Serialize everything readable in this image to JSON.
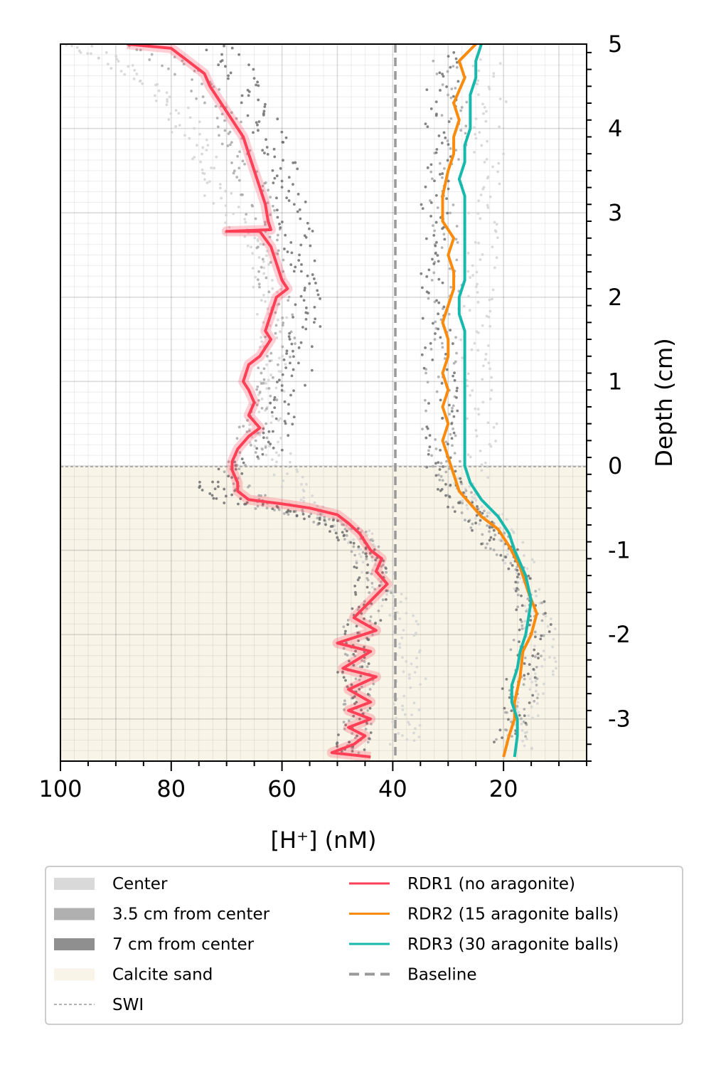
{
  "chart_data": {
    "type": "line",
    "xlabel": "[H⁺] (nM)",
    "ylabel": "Depth (cm)",
    "xlim": [
      100,
      5
    ],
    "ylim": [
      -3.5,
      5
    ],
    "x_ticks": [
      100,
      80,
      60,
      40,
      20
    ],
    "x_tick_labels": [
      "100",
      "80",
      "60",
      "40",
      "20"
    ],
    "y_ticks": [
      5,
      4,
      3,
      2,
      1,
      0,
      -1,
      -2,
      -3
    ],
    "y_tick_labels": [
      "5",
      "4",
      "3",
      "2",
      "1",
      "0",
      "-1",
      "-2",
      "-3"
    ],
    "grid": true,
    "swi_depth": 0,
    "baseline_x": 40,
    "sand_region": {
      "from_depth": -3.5,
      "to_depth": 0,
      "color": "#f8f4e8"
    },
    "series": [
      {
        "name": "RDR1 (no aragonite)",
        "color": "#ff3f56",
        "points": [
          [
            88,
            5
          ],
          [
            80,
            4.95
          ],
          [
            77,
            4.8
          ],
          [
            74,
            4.65
          ],
          [
            73,
            4.5
          ],
          [
            71,
            4.3
          ],
          [
            69,
            4.1
          ],
          [
            67,
            3.9
          ],
          [
            66,
            3.7
          ],
          [
            65,
            3.5
          ],
          [
            64,
            3.3
          ],
          [
            63,
            3.1
          ],
          [
            62.5,
            2.9
          ],
          [
            62,
            2.8
          ],
          [
            70,
            2.78
          ],
          [
            64,
            2.78
          ],
          [
            62,
            2.6
          ],
          [
            61,
            2.4
          ],
          [
            60,
            2.2
          ],
          [
            59,
            2.1
          ],
          [
            61,
            2.0
          ],
          [
            62,
            1.8
          ],
          [
            63,
            1.6
          ],
          [
            62,
            1.5
          ],
          [
            63,
            1.4
          ],
          [
            64,
            1.3
          ],
          [
            66,
            1.2
          ],
          [
            67,
            1.0
          ],
          [
            66,
            0.9
          ],
          [
            65,
            0.75
          ],
          [
            66,
            0.6
          ],
          [
            64,
            0.45
          ],
          [
            66,
            0.35
          ],
          [
            68,
            0.2
          ],
          [
            69,
            0.05
          ],
          [
            69,
            -0.05
          ],
          [
            68,
            -0.2
          ],
          [
            68,
            -0.3
          ],
          [
            66,
            -0.4
          ],
          [
            60,
            -0.45
          ],
          [
            55,
            -0.5
          ],
          [
            50,
            -0.58
          ],
          [
            48,
            -0.68
          ],
          [
            46,
            -0.8
          ],
          [
            44,
            -1.0
          ],
          [
            42,
            -1.1
          ],
          [
            43,
            -1.25
          ],
          [
            41,
            -1.4
          ],
          [
            44,
            -1.6
          ],
          [
            47,
            -1.8
          ],
          [
            43,
            -1.95
          ],
          [
            50,
            -2.1
          ],
          [
            44,
            -2.2
          ],
          [
            49,
            -2.4
          ],
          [
            43,
            -2.5
          ],
          [
            48,
            -2.65
          ],
          [
            44,
            -2.8
          ],
          [
            48,
            -2.9
          ],
          [
            44,
            -3.0
          ],
          [
            48,
            -3.1
          ],
          [
            45,
            -3.2
          ],
          [
            47,
            -3.3
          ],
          [
            51,
            -3.4
          ],
          [
            44,
            -3.45
          ]
        ]
      },
      {
        "name": "RDR2 (15 aragonite balls)",
        "color": "#fb8b0d",
        "points": [
          [
            25,
            5
          ],
          [
            28,
            4.8
          ],
          [
            27,
            4.6
          ],
          [
            29,
            4.3
          ],
          [
            28,
            4.1
          ],
          [
            29,
            3.9
          ],
          [
            29,
            3.7
          ],
          [
            30,
            3.5
          ],
          [
            31,
            3.2
          ],
          [
            31,
            2.9
          ],
          [
            29,
            2.7
          ],
          [
            30,
            2.5
          ],
          [
            29,
            2.3
          ],
          [
            29,
            2.1
          ],
          [
            30,
            1.9
          ],
          [
            31,
            1.7
          ],
          [
            30,
            1.5
          ],
          [
            30,
            1.3
          ],
          [
            31,
            1.1
          ],
          [
            30,
            0.9
          ],
          [
            31,
            0.7
          ],
          [
            30,
            0.5
          ],
          [
            31,
            0.3
          ],
          [
            30,
            0.1
          ],
          [
            29,
            -0.1
          ],
          [
            28,
            -0.3
          ],
          [
            26,
            -0.45
          ],
          [
            24,
            -0.6
          ],
          [
            21,
            -0.75
          ],
          [
            19,
            -0.95
          ],
          [
            17,
            -1.2
          ],
          [
            15.5,
            -1.5
          ],
          [
            14,
            -1.75
          ],
          [
            15,
            -2.0
          ],
          [
            16.5,
            -2.2
          ],
          [
            17,
            -2.5
          ],
          [
            18,
            -2.8
          ],
          [
            18,
            -3.0
          ],
          [
            19,
            -3.2
          ],
          [
            20,
            -3.45
          ]
        ]
      },
      {
        "name": "RDR3 (30 aragonite balls)",
        "color": "#18b9ad",
        "points": [
          [
            24,
            5
          ],
          [
            25,
            4.8
          ],
          [
            25,
            4.6
          ],
          [
            26,
            4.4
          ],
          [
            26,
            4.2
          ],
          [
            26,
            4.0
          ],
          [
            27,
            3.8
          ],
          [
            27,
            3.6
          ],
          [
            28,
            3.4
          ],
          [
            27,
            3.2
          ],
          [
            27,
            3.0
          ],
          [
            27,
            2.8
          ],
          [
            27,
            2.6
          ],
          [
            27,
            2.4
          ],
          [
            27,
            2.2
          ],
          [
            28,
            2.0
          ],
          [
            28,
            1.8
          ],
          [
            27,
            1.6
          ],
          [
            27,
            1.4
          ],
          [
            27,
            1.2
          ],
          [
            27,
            1.0
          ],
          [
            27,
            0.8
          ],
          [
            27,
            0.6
          ],
          [
            27,
            0.4
          ],
          [
            27,
            0.2
          ],
          [
            27,
            0.0
          ],
          [
            26,
            -0.2
          ],
          [
            24,
            -0.4
          ],
          [
            21,
            -0.6
          ],
          [
            19,
            -0.8
          ],
          [
            18,
            -1.0
          ],
          [
            16,
            -1.3
          ],
          [
            15,
            -1.6
          ],
          [
            15.5,
            -1.8
          ],
          [
            16,
            -2.0
          ],
          [
            17,
            -2.2
          ],
          [
            17.5,
            -2.4
          ],
          [
            18.5,
            -2.6
          ],
          [
            18.5,
            -2.8
          ],
          [
            17.5,
            -3.0
          ],
          [
            17.5,
            -3.2
          ],
          [
            18,
            -3.45
          ]
        ]
      },
      {
        "name": "Baseline",
        "color": "#999999",
        "points": [
          [
            40,
            5
          ],
          [
            40,
            -3.5
          ]
        ]
      }
    ],
    "legend": {
      "position": "bottom",
      "entries": [
        {
          "label": "Center",
          "kind": "patch",
          "color": "#d9d9d9"
        },
        {
          "label": "3.5 cm from center",
          "kind": "patch",
          "color": "#b0b0b0"
        },
        {
          "label": "7 cm from center",
          "kind": "patch",
          "color": "#8f8f8f"
        },
        {
          "label": "Calcite sand",
          "kind": "patch",
          "color": "#f8f4e8"
        },
        {
          "label": "SWI",
          "kind": "dotted",
          "color": "#999999"
        },
        {
          "label": "RDR1 (no aragonite)",
          "kind": "line",
          "color": "#ff3f56"
        },
        {
          "label": "RDR2 (15 aragonite balls)",
          "kind": "line",
          "color": "#fb8b0d"
        },
        {
          "label": "RDR3 (30 aragonite balls)",
          "kind": "line",
          "color": "#18b9ad"
        },
        {
          "label": "Baseline",
          "kind": "dashed",
          "color": "#999999"
        }
      ]
    },
    "scatter_profiles": [
      {
        "name": "Center",
        "color": "#d4d4d4",
        "profiles": [
          [
            [
              98,
              5
            ],
            [
              90,
              4.8
            ],
            [
              83,
              4.5
            ],
            [
              78,
              4.1
            ],
            [
              75,
              3.7
            ],
            [
              72,
              3.3
            ],
            [
              68,
              2.8
            ],
            [
              63,
              2.5
            ],
            [
              62,
              2.0
            ],
            [
              62,
              1.5
            ],
            [
              62,
              1.0
            ],
            [
              63,
              0.6
            ],
            [
              63,
              0.3
            ],
            [
              60,
              0.0
            ],
            [
              57,
              -0.4
            ],
            [
              52,
              -0.6
            ],
            [
              46,
              -0.8
            ],
            [
              44,
              -1.1
            ],
            [
              41,
              -1.5
            ],
            [
              38,
              -1.8
            ],
            [
              37,
              -2.2
            ],
            [
              37,
              -2.6
            ],
            [
              37,
              -3.0
            ],
            [
              38,
              -3.3
            ]
          ],
          [
            [
              23,
              4.8
            ],
            [
              22,
              4.3
            ],
            [
              23,
              3.7
            ],
            [
              24,
              3.1
            ],
            [
              24,
              2.5
            ],
            [
              25,
              2.0
            ],
            [
              25,
              1.5
            ],
            [
              24,
              1.0
            ],
            [
              24,
              0.4
            ],
            [
              26,
              -0.2
            ],
            [
              24,
              -0.5
            ],
            [
              20,
              -0.8
            ],
            [
              17,
              -1.2
            ],
            [
              14,
              -1.7
            ],
            [
              13,
              -2.2
            ],
            [
              14,
              -2.6
            ],
            [
              16,
              -3.0
            ],
            [
              17,
              -3.4
            ]
          ]
        ]
      },
      {
        "name": "3.5 cm from center",
        "color": "#a8a8a8",
        "profiles": [
          [
            [
              85,
              5
            ],
            [
              76,
              4.6
            ],
            [
              71,
              4.2
            ],
            [
              68,
              3.8
            ],
            [
              66,
              3.4
            ],
            [
              64,
              3.0
            ],
            [
              62,
              2.5
            ],
            [
              61,
              2.0
            ],
            [
              60,
              1.5
            ],
            [
              62,
              1.0
            ],
            [
              64,
              0.6
            ],
            [
              66,
              0.2
            ],
            [
              68,
              -0.2
            ],
            [
              64,
              -0.45
            ],
            [
              54,
              -0.6
            ],
            [
              47,
              -0.8
            ],
            [
              44,
              -1.1
            ],
            [
              42,
              -1.5
            ],
            [
              46,
              -1.9
            ],
            [
              47,
              -2.3
            ],
            [
              46,
              -2.7
            ],
            [
              46,
              -3.1
            ],
            [
              47,
              -3.4
            ]
          ],
          [
            [
              30,
              4.8
            ],
            [
              29,
              4.2
            ],
            [
              30,
              3.6
            ],
            [
              31,
              3.0
            ],
            [
              30,
              2.4
            ],
            [
              31,
              1.8
            ],
            [
              31,
              1.2
            ],
            [
              32,
              0.6
            ],
            [
              31,
              0.1
            ],
            [
              29,
              -0.3
            ],
            [
              25,
              -0.6
            ],
            [
              21,
              -0.9
            ],
            [
              18,
              -1.3
            ],
            [
              15,
              -1.8
            ],
            [
              16,
              -2.3
            ],
            [
              17,
              -2.8
            ],
            [
              19,
              -3.3
            ]
          ]
        ]
      },
      {
        "name": "7 cm from center",
        "color": "#6e6e6e",
        "profiles": [
          [
            [
              72,
              5
            ],
            [
              67,
              4.6
            ],
            [
              64,
              4.2
            ],
            [
              61,
              3.8
            ],
            [
              59,
              3.4
            ],
            [
              58,
              3.0
            ],
            [
              57,
              2.6
            ],
            [
              56,
              2.2
            ],
            [
              55.5,
              1.8
            ],
            [
              56,
              1.4
            ],
            [
              58,
              1.0
            ],
            [
              60,
              0.6
            ],
            [
              62,
              0.2
            ],
            [
              73,
              -0.2
            ],
            [
              70,
              -0.4
            ],
            [
              58,
              -0.55
            ],
            [
              50,
              -0.7
            ],
            [
              46,
              -0.9
            ],
            [
              44,
              -1.2
            ],
            [
              44,
              -1.6
            ],
            [
              46,
              -2.0
            ],
            [
              47,
              -2.4
            ],
            [
              46,
              -2.8
            ],
            [
              47,
              -3.2
            ],
            [
              48,
              -3.4
            ]
          ],
          [
            [
              31,
              4.9
            ],
            [
              31,
              4.3
            ],
            [
              32,
              3.7
            ],
            [
              32,
              3.1
            ],
            [
              32,
              2.5
            ],
            [
              32,
              1.9
            ],
            [
              32,
              1.3
            ],
            [
              31,
              0.7
            ],
            [
              32,
              0.2
            ],
            [
              30,
              -0.2
            ],
            [
              27,
              -0.5
            ],
            [
              23,
              -0.8
            ],
            [
              19,
              -1.1
            ],
            [
              16,
              -1.5
            ],
            [
              14,
              -1.9
            ],
            [
              16,
              -2.3
            ],
            [
              18,
              -2.8
            ],
            [
              19,
              -3.3
            ]
          ]
        ]
      }
    ]
  }
}
